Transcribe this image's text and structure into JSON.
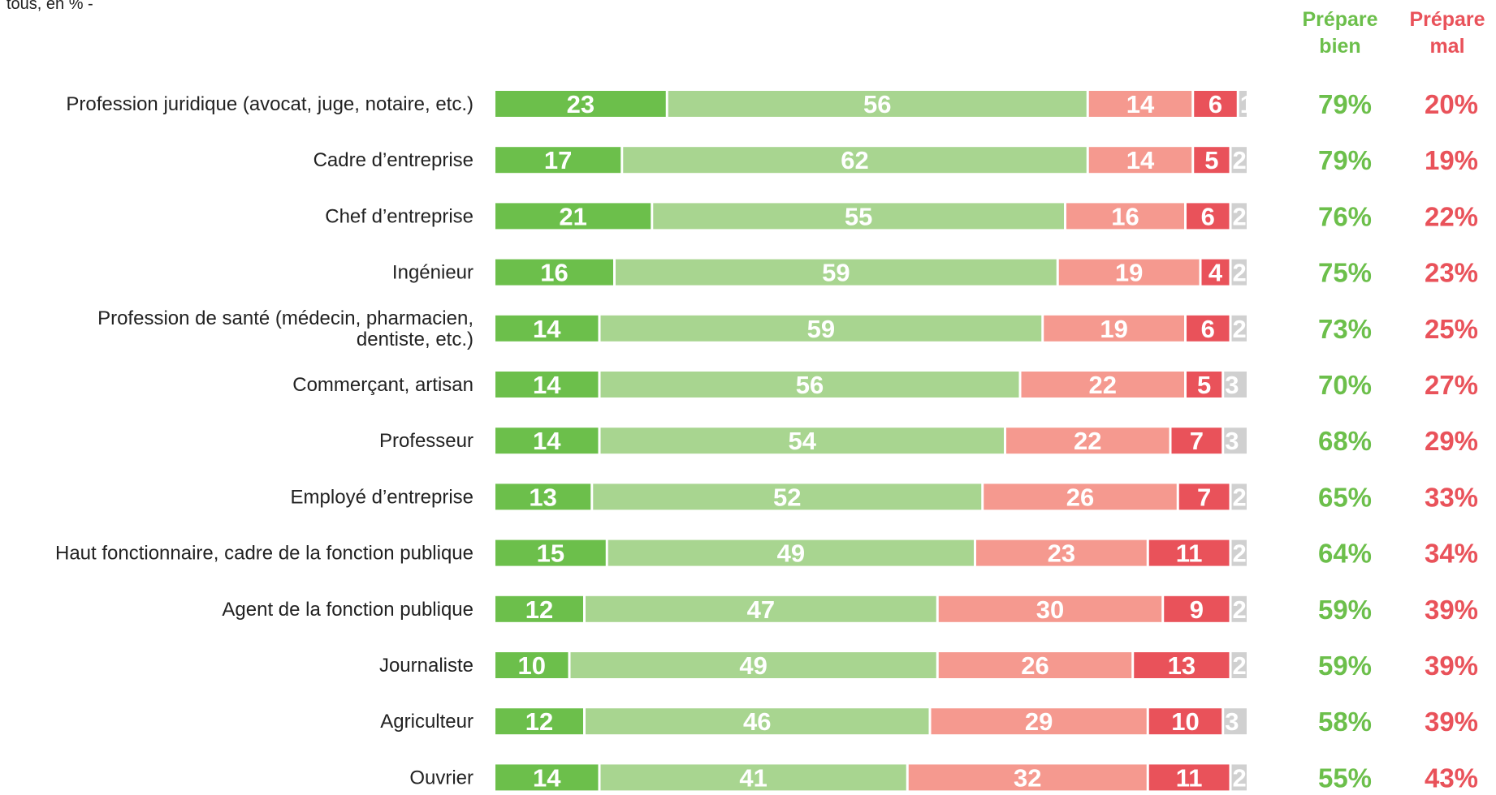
{
  "subtitle": "tous, en % -",
  "headers": {
    "bien": "Prépare bien",
    "mal": "Prépare mal"
  },
  "colors": {
    "tres_bien": "#6cbf4b",
    "plutot_bien": "#a8d590",
    "plutot_mal": "#f5998f",
    "tres_mal": "#e9525a",
    "nsp": "#d0d0d0",
    "bien_text": "#6cbf4b",
    "mal_text": "#e9525a"
  },
  "chart_data": {
    "type": "bar",
    "orientation": "horizontal-stacked",
    "categories": [
      [
        "Profession juridique (avocat, juge, notaire, etc.)"
      ],
      [
        "Cadre d’entreprise"
      ],
      [
        "Chef d’entreprise"
      ],
      [
        "Ingénieur"
      ],
      [
        "Profession de santé (médecin, pharmacien,",
        "dentiste, etc.)"
      ],
      [
        "Commerçant, artisan"
      ],
      [
        "Professeur"
      ],
      [
        "Employé d’entreprise"
      ],
      [
        "Haut fonctionnaire, cadre de la fonction publique"
      ],
      [
        "Agent de la fonction publique"
      ],
      [
        "Journaliste"
      ],
      [
        "Agriculteur"
      ],
      [
        "Ouvrier"
      ]
    ],
    "series": [
      {
        "values": [
          23,
          17,
          21,
          16,
          14,
          14,
          14,
          13,
          15,
          12,
          10,
          12,
          14
        ]
      },
      {
        "values": [
          56,
          62,
          55,
          59,
          59,
          56,
          54,
          52,
          49,
          47,
          49,
          46,
          41
        ]
      },
      {
        "values": [
          14,
          14,
          16,
          19,
          19,
          22,
          22,
          26,
          23,
          30,
          26,
          29,
          32
        ]
      },
      {
        "values": [
          6,
          5,
          6,
          4,
          6,
          5,
          7,
          7,
          11,
          9,
          13,
          10,
          11
        ]
      },
      {
        "values": [
          1,
          2,
          2,
          2,
          2,
          3,
          3,
          2,
          2,
          2,
          2,
          3,
          2
        ]
      }
    ],
    "totals_bien": [
      "79%",
      "79%",
      "76%",
      "75%",
      "73%",
      "70%",
      "68%",
      "65%",
      "64%",
      "59%",
      "59%",
      "58%",
      "55%"
    ],
    "totals_mal": [
      "20%",
      "19%",
      "22%",
      "23%",
      "25%",
      "27%",
      "29%",
      "33%",
      "34%",
      "39%",
      "39%",
      "39%",
      "43%"
    ]
  }
}
